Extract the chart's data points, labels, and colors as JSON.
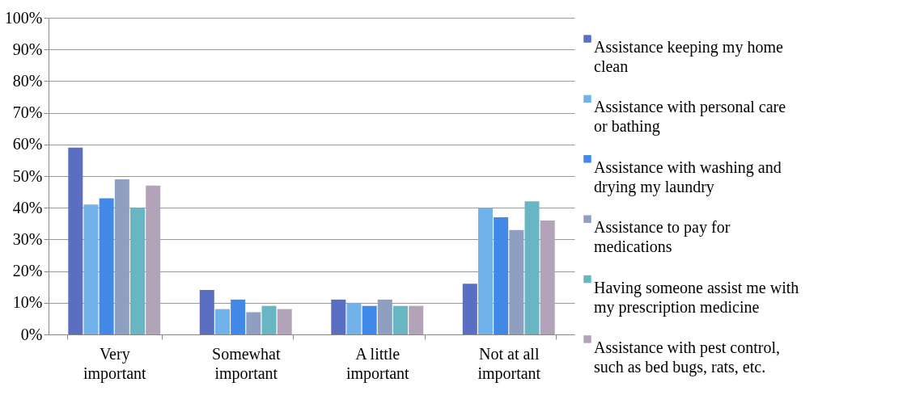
{
  "chart_data": {
    "type": "bar",
    "categories": [
      "Very important",
      "Somewhat important",
      "A little important",
      "Not at all important"
    ],
    "series": [
      {
        "name": "Assistance keeping my home clean",
        "color": "#5b6fc2",
        "values": [
          59,
          14,
          11,
          16
        ]
      },
      {
        "name": "Assistance with personal care or bathing",
        "color": "#72b2ea",
        "values": [
          41,
          8,
          10,
          40
        ]
      },
      {
        "name": "Assistance with washing and drying my laundry",
        "color": "#4288e6",
        "values": [
          43,
          11,
          9,
          37
        ]
      },
      {
        "name": "Assistance to pay for medications",
        "color": "#8e9fc2",
        "values": [
          49,
          7,
          11,
          33
        ]
      },
      {
        "name": "Having someone assist me with my prescription medicine",
        "color": "#68b6c4",
        "values": [
          40,
          9,
          9,
          42
        ]
      },
      {
        "name": "Assistance with pest control, such as bed bugs, rats, etc.",
        "color": "#b3a3b9",
        "values": [
          47,
          8,
          9,
          36
        ]
      }
    ],
    "ylim": [
      0,
      100
    ],
    "yticks": [
      {
        "value": 0,
        "label": "0%"
      },
      {
        "value": 10,
        "label": "10%"
      },
      {
        "value": 20,
        "label": "20%"
      },
      {
        "value": 30,
        "label": "30%"
      },
      {
        "value": 40,
        "label": "40%"
      },
      {
        "value": 50,
        "label": "50%"
      },
      {
        "value": 60,
        "label": "60%"
      },
      {
        "value": 70,
        "label": "70%"
      },
      {
        "value": 80,
        "label": "80%"
      },
      {
        "value": 90,
        "label": "90%"
      },
      {
        "value": 100,
        "label": "100%"
      }
    ],
    "grid": "y",
    "legend": "right"
  }
}
